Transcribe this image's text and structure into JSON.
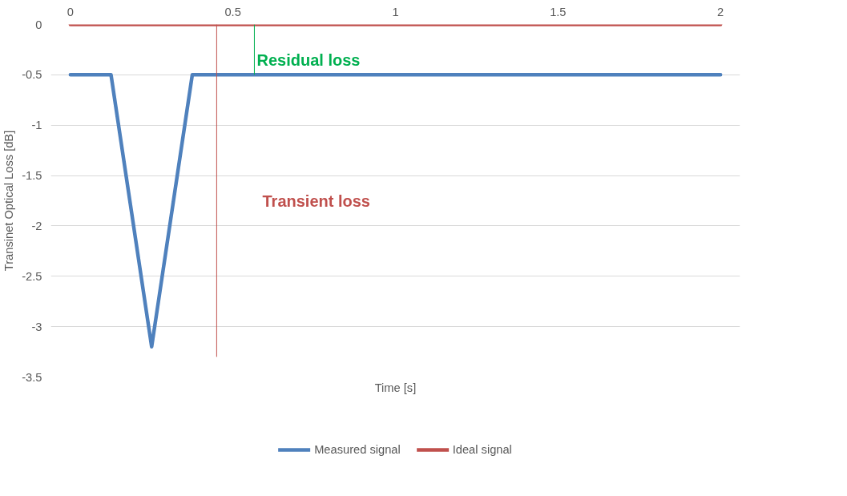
{
  "chart_data": {
    "type": "line",
    "xlabel": "Time [s]",
    "ylabel": "Transinet Optical Loss [dB]",
    "xlim": [
      -0.06,
      2.06
    ],
    "xticks": [
      0,
      0.5,
      1,
      1.5,
      2
    ],
    "ylim": [
      -3.5,
      0
    ],
    "yticks": [
      0,
      -0.5,
      -1,
      -1.5,
      -2,
      -2.5,
      -3,
      -3.5
    ],
    "series": [
      {
        "name": "Measured signal",
        "color": "#4f81bd",
        "x": [
          0,
          0.125,
          0.25,
          0.375,
          2
        ],
        "values": [
          -0.5,
          -0.5,
          -3.2,
          -0.5,
          -0.5
        ]
      },
      {
        "name": "Ideal signal",
        "color": "#c0504d",
        "x": [
          0,
          2
        ],
        "values": [
          0,
          0
        ]
      },
      {
        "color": "#00b050",
        "x": [
          0.566,
          0.566
        ],
        "values": [
          0,
          -0.5
        ]
      },
      {
        "color": "#c0504d",
        "x": [
          0.45,
          0.45
        ],
        "values": [
          0,
          -3.3
        ]
      }
    ],
    "annotations": [
      "Residual loss",
      "Transient loss"
    ],
    "grid": "y",
    "legend": "bottom",
    "marker": "none",
    "line_style": "solid"
  }
}
